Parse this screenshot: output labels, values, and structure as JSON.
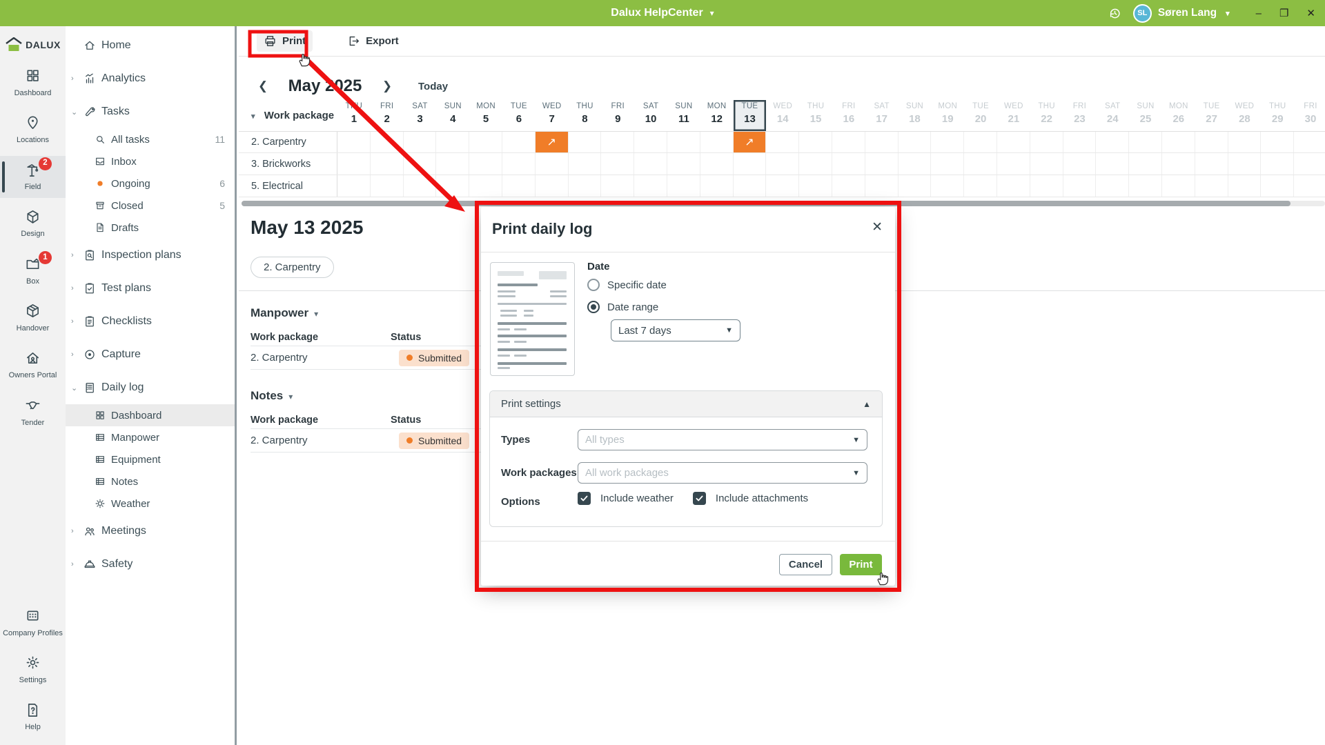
{
  "titlebar": {
    "app_title": "Dalux HelpCenter",
    "user_name": "Søren Lang",
    "user_initials": "SL"
  },
  "rail": {
    "logo": "DALUX",
    "items": [
      {
        "label": "Dashboard",
        "icon": "dashboard-grid"
      },
      {
        "label": "Locations",
        "icon": "map-pin"
      },
      {
        "label": "Field",
        "icon": "crane",
        "badge": "2",
        "active": true
      },
      {
        "label": "Design",
        "icon": "cube"
      },
      {
        "label": "Box",
        "icon": "folder",
        "badge": "1"
      },
      {
        "label": "Handover",
        "icon": "package"
      },
      {
        "label": "Owners Portal",
        "icon": "house-user"
      },
      {
        "label": "Tender",
        "icon": "handshake"
      }
    ],
    "bottom_items": [
      {
        "label": "Company Profiles",
        "icon": "company"
      },
      {
        "label": "Settings",
        "icon": "gear"
      },
      {
        "label": "Help",
        "icon": "help"
      }
    ]
  },
  "sidebar": {
    "items": [
      {
        "label": "Home",
        "icon": "home"
      },
      {
        "label": "Analytics",
        "icon": "analytics",
        "chevron": "right"
      },
      {
        "label": "Tasks",
        "icon": "wrench",
        "chevron": "down"
      },
      {
        "label": "All tasks",
        "icon": "search",
        "sub": true,
        "count": "11"
      },
      {
        "label": "Inbox",
        "icon": "inbox",
        "sub": true
      },
      {
        "label": "Ongoing",
        "icon": "dot-orange",
        "sub": true,
        "count": "6"
      },
      {
        "label": "Closed",
        "icon": "archive",
        "sub": true,
        "count": "5"
      },
      {
        "label": "Drafts",
        "icon": "draft",
        "sub": true
      },
      {
        "label": "Inspection plans",
        "icon": "clipboard-search",
        "chevron": "right"
      },
      {
        "label": "Test plans",
        "icon": "clipboard-check",
        "chevron": "right"
      },
      {
        "label": "Checklists",
        "icon": "clipboard-list",
        "chevron": "right"
      },
      {
        "label": "Capture",
        "icon": "capture",
        "chevron": "right"
      },
      {
        "label": "Daily log",
        "icon": "daily-log",
        "chevron": "down"
      },
      {
        "label": "Dashboard",
        "icon": "grid-small",
        "sub": true,
        "selected": true
      },
      {
        "label": "Manpower",
        "icon": "table",
        "sub": true
      },
      {
        "label": "Equipment",
        "icon": "table",
        "sub": true
      },
      {
        "label": "Notes",
        "icon": "table",
        "sub": true
      },
      {
        "label": "Weather",
        "icon": "sun",
        "sub": true
      },
      {
        "label": "Meetings",
        "icon": "people",
        "chevron": "right"
      },
      {
        "label": "Safety",
        "icon": "helmet",
        "chevron": "right"
      }
    ]
  },
  "toolbar": {
    "print_label": "Print",
    "export_label": "Export"
  },
  "calendar": {
    "month_label": "May 2025",
    "today_label": "Today",
    "work_package_label": "Work package",
    "selected_day": 13,
    "first_dow_index": 3,
    "dows": [
      "MON",
      "TUE",
      "WED",
      "THU",
      "FRI",
      "SAT",
      "SUN"
    ],
    "num_days": 30,
    "muted_from": 14,
    "rows": [
      {
        "name": "2. Carpentry",
        "events": [
          7,
          13
        ]
      },
      {
        "name": "3. Brickworks",
        "events": []
      },
      {
        "name": "5. Electrical",
        "events": []
      }
    ]
  },
  "detail": {
    "date_title": "May 13 2025",
    "chip": "2. Carpentry",
    "sections": [
      {
        "title": "Manpower",
        "col1": "Work package",
        "col2": "Status",
        "rows": [
          {
            "work_package": "2. Carpentry",
            "status": "Submitted"
          }
        ]
      },
      {
        "title": "Notes",
        "col1": "Work package",
        "col2": "Status",
        "rows": [
          {
            "work_package": "2. Carpentry",
            "status": "Submitted"
          }
        ]
      }
    ]
  },
  "modal": {
    "title": "Print daily log",
    "date_label": "Date",
    "radio_specific": "Specific date",
    "radio_range": "Date range",
    "range_value": "Last 7 days",
    "settings_title": "Print settings",
    "types_label": "Types",
    "types_placeholder": "All types",
    "wp_label": "Work packages",
    "wp_placeholder": "All work packages",
    "options_label": "Options",
    "opt_weather": "Include weather",
    "opt_attachments": "Include attachments",
    "cancel_label": "Cancel",
    "print_label": "Print"
  },
  "colors": {
    "green": "#8cbe43",
    "btn-green": "#79b93c",
    "orange": "#f07d28",
    "red": "#ee1111",
    "badge-red": "#e53935",
    "submitted-bg": "#fbe0cd",
    "avatar-blue": "#58b7d6"
  }
}
